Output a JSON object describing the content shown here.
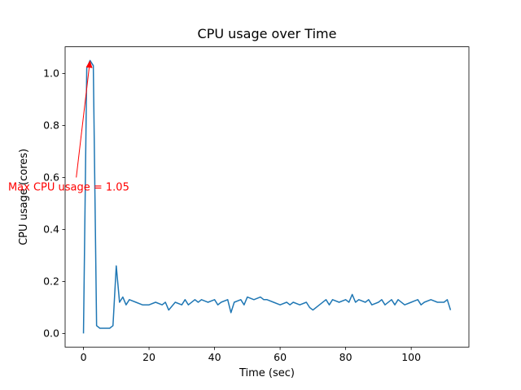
{
  "figure": {
    "background": "#ffffff"
  },
  "chart_data": {
    "type": "line",
    "title": "CPU usage over Time",
    "xlabel": "Time (sec)",
    "ylabel": "CPU usage (cores)",
    "line_color": "#1f77b4",
    "line_width": 1.5,
    "axis_color": "#000000",
    "grid": false,
    "legend": null,
    "xlim": [
      -5.6,
      117.6
    ],
    "ylim": [
      -0.0525,
      1.1025
    ],
    "xticks": [
      0,
      20,
      40,
      60,
      80,
      100
    ],
    "yticks": [
      0.0,
      0.2,
      0.4,
      0.6,
      0.8,
      1.0
    ],
    "x": [
      0,
      1,
      2,
      3,
      4,
      5,
      6,
      7,
      8,
      9,
      10,
      11,
      12,
      13,
      14,
      16,
      18,
      20,
      22,
      24,
      25,
      26,
      28,
      30,
      31,
      32,
      34,
      35,
      36,
      38,
      40,
      41,
      42,
      44,
      45,
      46,
      48,
      49,
      50,
      52,
      54,
      55,
      56,
      58,
      60,
      62,
      63,
      64,
      66,
      68,
      69,
      70,
      72,
      74,
      75,
      76,
      78,
      80,
      81,
      82,
      83,
      84,
      86,
      87,
      88,
      90,
      91,
      92,
      94,
      95,
      96,
      98,
      100,
      102,
      103,
      104,
      106,
      108,
      110,
      111,
      112
    ],
    "y": [
      0.0,
      1.02,
      1.05,
      1.03,
      0.03,
      0.02,
      0.02,
      0.02,
      0.02,
      0.03,
      0.26,
      0.12,
      0.14,
      0.11,
      0.13,
      0.12,
      0.11,
      0.11,
      0.12,
      0.11,
      0.12,
      0.09,
      0.12,
      0.11,
      0.13,
      0.11,
      0.13,
      0.12,
      0.13,
      0.12,
      0.13,
      0.11,
      0.12,
      0.13,
      0.08,
      0.12,
      0.13,
      0.11,
      0.14,
      0.13,
      0.14,
      0.13,
      0.13,
      0.12,
      0.11,
      0.12,
      0.11,
      0.12,
      0.11,
      0.12,
      0.1,
      0.09,
      0.11,
      0.13,
      0.11,
      0.13,
      0.12,
      0.13,
      0.12,
      0.15,
      0.12,
      0.13,
      0.12,
      0.13,
      0.11,
      0.12,
      0.13,
      0.11,
      0.13,
      0.11,
      0.13,
      0.11,
      0.12,
      0.13,
      0.11,
      0.12,
      0.13,
      0.12,
      0.12,
      0.13,
      0.09
    ],
    "annotation": {
      "text": "Max CPU usage = 1.05",
      "color": "#ff0000",
      "xy": [
        2,
        1.05
      ],
      "text_pos": [
        -23,
        0.55
      ],
      "arrow_start": [
        -2.2,
        0.6
      ]
    }
  }
}
